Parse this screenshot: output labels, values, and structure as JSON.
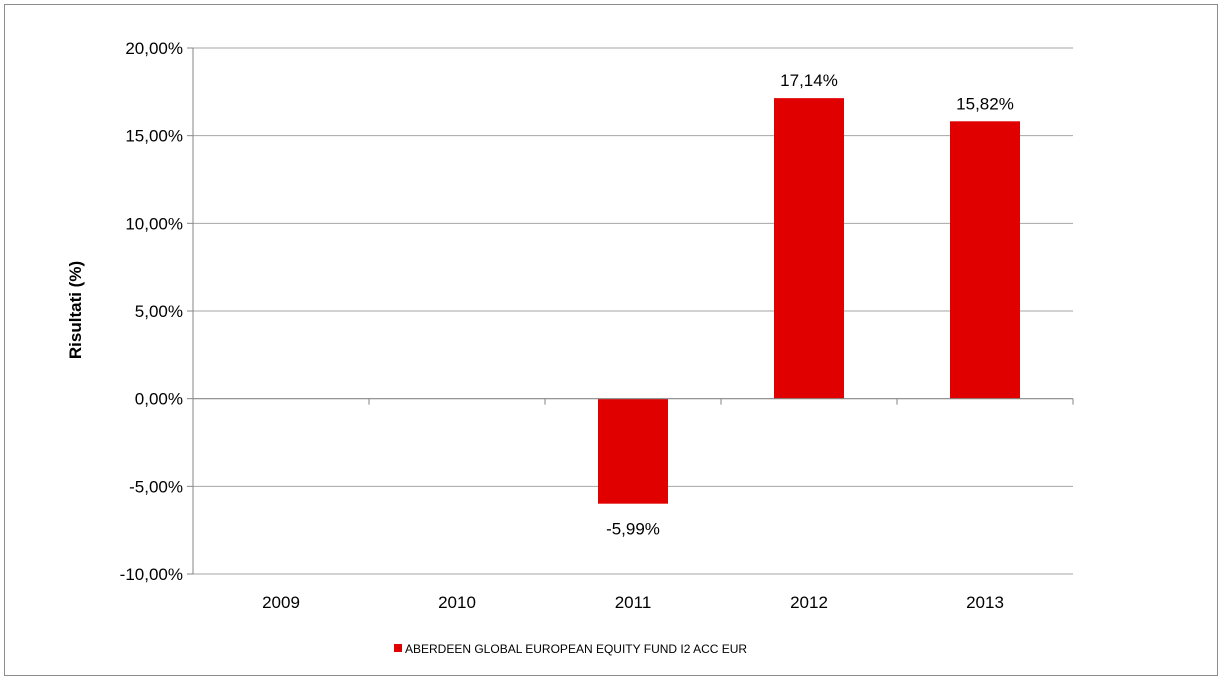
{
  "chart_data": {
    "type": "bar",
    "categories": [
      "2009",
      "2010",
      "2011",
      "2012",
      "2013"
    ],
    "series": [
      {
        "name": "ABERDEEN GLOBAL EUROPEAN EQUITY FUND I2 ACC EUR",
        "values": [
          null,
          null,
          -5.99,
          17.14,
          15.82
        ],
        "data_labels": [
          "",
          "",
          "-5,99%",
          "17,14%",
          "15,82%"
        ],
        "color": "#e00000"
      }
    ],
    "ylabel": "Risultati (%)",
    "xlabel": "",
    "ylim": [
      -10,
      20
    ],
    "yticks": [
      -10,
      -5,
      0,
      5,
      10,
      15,
      20
    ],
    "ytick_labels": [
      "-10,00%",
      "-5,00%",
      "0,00%",
      "5,00%",
      "10,00%",
      "15,00%",
      "20,00%"
    ],
    "grid": true,
    "legend_position": "bottom"
  },
  "colors": {
    "grid": "#a6a6a6",
    "axis": "#868686",
    "bar": "#e00000"
  }
}
